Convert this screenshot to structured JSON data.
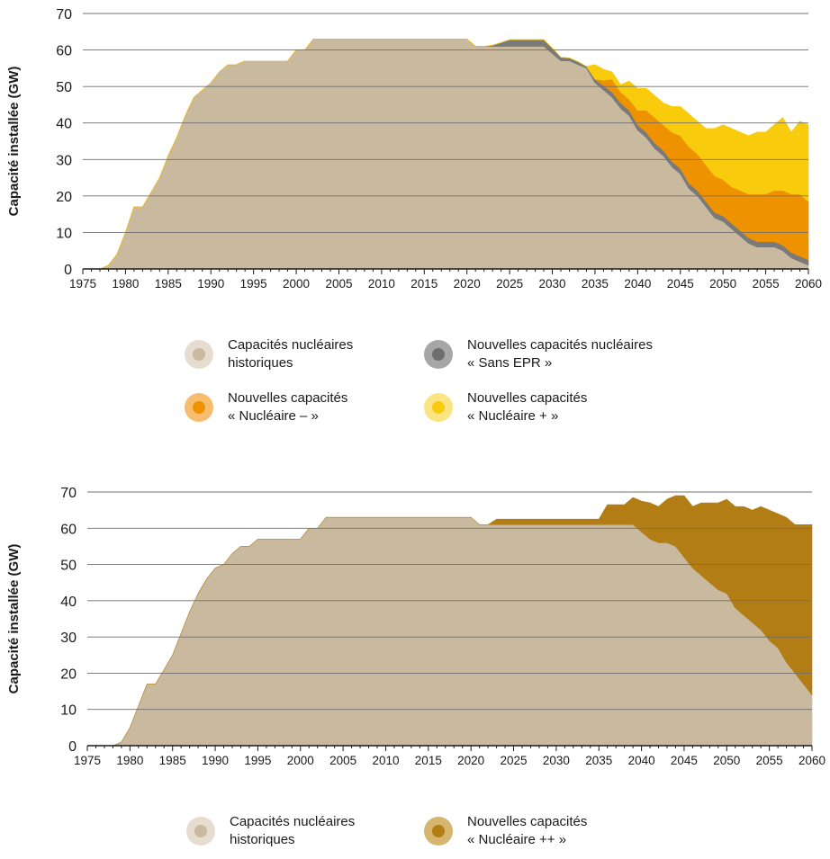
{
  "chart_data": [
    {
      "type": "area",
      "stacked": true,
      "ylabel": "Capacité installée (GW)",
      "ylim": [
        0,
        70
      ],
      "yticks": [
        0,
        10,
        20,
        30,
        40,
        50,
        60,
        70
      ],
      "xlim": [
        1975,
        2060
      ],
      "xticks": [
        1975,
        1980,
        1985,
        1990,
        1995,
        2000,
        2005,
        2010,
        2015,
        2020,
        2025,
        2030,
        2035,
        2040,
        2045,
        2050,
        2055,
        2060
      ],
      "grid": "horizontal",
      "x": [
        1977,
        1978,
        1979,
        1980,
        1981,
        1982,
        1983,
        1984,
        1985,
        1986,
        1987,
        1988,
        1989,
        1990,
        1991,
        1992,
        1993,
        1994,
        1995,
        1996,
        1997,
        1998,
        1999,
        2000,
        2001,
        2002,
        2003,
        2004,
        2005,
        2006,
        2007,
        2008,
        2009,
        2010,
        2011,
        2012,
        2013,
        2014,
        2015,
        2016,
        2017,
        2018,
        2019,
        2020,
        2021,
        2022,
        2023,
        2024,
        2025,
        2026,
        2027,
        2028,
        2029,
        2030,
        2031,
        2032,
        2033,
        2034,
        2035,
        2036,
        2037,
        2038,
        2039,
        2040,
        2041,
        2042,
        2043,
        2044,
        2045,
        2046,
        2047,
        2048,
        2049,
        2050,
        2051,
        2052,
        2053,
        2054,
        2055,
        2056,
        2057,
        2058,
        2059,
        2060
      ],
      "series": [
        {
          "name": "Capacités nucléaires historiques",
          "color": "#c9b99f",
          "values": [
            0,
            1,
            4,
            10,
            17,
            17,
            21,
            25,
            31,
            36,
            42,
            47,
            49,
            51,
            54,
            56,
            56,
            57,
            57,
            57,
            57,
            57,
            57,
            60,
            60,
            63,
            63,
            63,
            63,
            63,
            63,
            63,
            63,
            63,
            63,
            63,
            63,
            63,
            63,
            63,
            63,
            63,
            63,
            63,
            61,
            61,
            61,
            61,
            61,
            61,
            61,
            61,
            61,
            59,
            57,
            57,
            56,
            55,
            51,
            49,
            47,
            44,
            42,
            38,
            36,
            33,
            31,
            28,
            26,
            22,
            20,
            17,
            14,
            13,
            11,
            9,
            7,
            6,
            6,
            6,
            5,
            3,
            2,
            1
          ]
        },
        {
          "name": "Nouvelles capacités nucléaires « Sans EPR »",
          "color": "#7a7a7a",
          "values": [
            0,
            0,
            0,
            0,
            0,
            0,
            0,
            0,
            0,
            0,
            0,
            0,
            0,
            0,
            0,
            0,
            0,
            0,
            0,
            0,
            0,
            0,
            0,
            0,
            0,
            0,
            0,
            0,
            0,
            0,
            0,
            0,
            0,
            0,
            0,
            0,
            0,
            0,
            0,
            0,
            0,
            0,
            0,
            0,
            0,
            0,
            0.3,
            1,
            1.8,
            1.8,
            1.8,
            1.8,
            1.8,
            1.5,
            1,
            0.8,
            0.8,
            0.5,
            1,
            1.2,
            1.5,
            1.5,
            1.5,
            1.5,
            1.5,
            1.5,
            1.5,
            1.5,
            1.5,
            1.5,
            1.5,
            1.5,
            1.5,
            1.5,
            1.5,
            1.5,
            1.5,
            1.5,
            1.5,
            1.5,
            1.5,
            1.5,
            1.5,
            1.5
          ]
        },
        {
          "name": "Nouvelles capacités « Nucléaire – »",
          "color": "#ef9200",
          "values": [
            0,
            0,
            0,
            0,
            0,
            0,
            0,
            0,
            0,
            0,
            0,
            0,
            0,
            0,
            0,
            0,
            0,
            0,
            0,
            0,
            0,
            0,
            0,
            0,
            0,
            0,
            0,
            0,
            0,
            0,
            0,
            0,
            0,
            0,
            0,
            0,
            0,
            0,
            0,
            0,
            0,
            0,
            0,
            0,
            0,
            0,
            0,
            0,
            0,
            0,
            0,
            0,
            0,
            0,
            0,
            0,
            0,
            0,
            0,
            1.5,
            3.5,
            3,
            3,
            4,
            6,
            7,
            7,
            8,
            9,
            10,
            10,
            10,
            10,
            10,
            10,
            11,
            12,
            13,
            13,
            14,
            15,
            16,
            17,
            16
          ]
        },
        {
          "name": "Nouvelles capacités « Nucléaire + »",
          "color": "#f8cc0d",
          "values": [
            0,
            0,
            0,
            0,
            0,
            0,
            0,
            0,
            0,
            0,
            0,
            0,
            0,
            0,
            0,
            0,
            0,
            0,
            0,
            0,
            0,
            0,
            0,
            0,
            0,
            0,
            0,
            0,
            0,
            0,
            0,
            0,
            0,
            0,
            0,
            0,
            0,
            0,
            0,
            0,
            0,
            0,
            0,
            0,
            0,
            0,
            0,
            0,
            0,
            0,
            0,
            0,
            0,
            0,
            0,
            0,
            0,
            0,
            4,
            3,
            2,
            2,
            5,
            6,
            6,
            6,
            6,
            7,
            8,
            9,
            9,
            10,
            13,
            15,
            16,
            16,
            16,
            17,
            17,
            18,
            20,
            17,
            20,
            21
          ]
        }
      ]
    },
    {
      "type": "area",
      "stacked": true,
      "ylabel": "Capacité installée (GW)",
      "ylim": [
        0,
        70
      ],
      "yticks": [
        0,
        10,
        20,
        30,
        40,
        50,
        60,
        70
      ],
      "xlim": [
        1975,
        2060
      ],
      "xticks": [
        1975,
        1980,
        1985,
        1990,
        1995,
        2000,
        2005,
        2010,
        2015,
        2020,
        2025,
        2030,
        2035,
        2040,
        2045,
        2050,
        2055,
        2060
      ],
      "grid": "horizontal",
      "x": [
        1977,
        1978,
        1979,
        1980,
        1981,
        1982,
        1983,
        1984,
        1985,
        1986,
        1987,
        1988,
        1989,
        1990,
        1991,
        1992,
        1993,
        1994,
        1995,
        1996,
        1997,
        1998,
        1999,
        2000,
        2001,
        2002,
        2003,
        2004,
        2005,
        2006,
        2007,
        2008,
        2009,
        2010,
        2011,
        2012,
        2013,
        2014,
        2015,
        2016,
        2017,
        2018,
        2019,
        2020,
        2021,
        2022,
        2023,
        2024,
        2025,
        2026,
        2027,
        2028,
        2029,
        2030,
        2031,
        2032,
        2033,
        2034,
        2035,
        2036,
        2037,
        2038,
        2039,
        2040,
        2041,
        2042,
        2043,
        2044,
        2045,
        2046,
        2047,
        2048,
        2049,
        2050,
        2051,
        2052,
        2053,
        2054,
        2055,
        2056,
        2057,
        2058,
        2059,
        2060
      ],
      "series": [
        {
          "name": "Capacités nucléaires historiques",
          "color": "#c9b99f",
          "values": [
            0,
            0,
            1,
            5,
            11,
            17,
            17,
            21,
            25,
            31,
            37,
            42,
            46,
            49,
            50,
            53,
            55,
            55,
            57,
            57,
            57,
            57,
            57,
            57,
            60,
            60,
            63,
            63,
            63,
            63,
            63,
            63,
            63,
            63,
            63,
            63,
            63,
            63,
            63,
            63,
            63,
            63,
            63,
            63,
            61,
            61,
            61,
            61,
            61,
            61,
            61,
            61,
            61,
            61,
            61,
            61,
            61,
            61,
            61,
            61,
            61,
            61,
            61,
            59,
            57,
            56,
            56,
            55,
            52,
            49,
            47,
            45,
            43,
            42,
            38,
            36,
            34,
            32,
            29,
            27,
            23,
            20,
            17,
            14
          ]
        },
        {
          "name": "Nouvelles capacités « Nucléaire ++ »",
          "color": "#b27d15",
          "values": [
            0,
            0,
            0,
            0,
            0,
            0,
            0,
            0,
            0,
            0,
            0,
            0,
            0,
            0,
            0,
            0,
            0,
            0,
            0,
            0,
            0,
            0,
            0,
            0,
            0,
            0,
            0,
            0,
            0,
            0,
            0,
            0,
            0,
            0,
            0,
            0,
            0,
            0,
            0,
            0,
            0,
            0,
            0,
            0,
            0,
            0,
            1.5,
            1.5,
            1.5,
            1.5,
            1.5,
            1.5,
            1.5,
            1.5,
            1.5,
            1.5,
            1.5,
            1.5,
            1.5,
            5.5,
            5.5,
            5.5,
            7.5,
            8.5,
            10,
            10,
            12,
            14,
            17,
            17,
            20,
            22,
            24,
            26,
            28,
            30,
            31,
            34,
            36,
            37,
            40,
            41,
            44,
            47
          ]
        }
      ]
    }
  ],
  "legends": [
    [
      {
        "line1": "Capacités nucléaires",
        "line2": "historiques",
        "outer": "#e6ddd0",
        "inner": "#c9b99f"
      },
      {
        "line1": "Nouvelles capacités nucléaires",
        "line2": "« Sans EPR »",
        "outer": "#a6a6a6",
        "inner": "#6e6e6e"
      },
      {
        "line1": "Nouvelles capacités",
        "line2": "« Nucléaire – »",
        "outer": "#f6bd6f",
        "inner": "#ef9200"
      },
      {
        "line1": "Nouvelles capacités",
        "line2": "« Nucléaire + »",
        "outer": "#fde482",
        "inner": "#f8cc0d"
      }
    ],
    [
      {
        "line1": "Capacités nucléaires",
        "line2": "historiques",
        "outer": "#e6ddd0",
        "inner": "#c9b99f"
      },
      {
        "line1": "Nouvelles capacités",
        "line2": "« Nucléaire ++ »",
        "outer": "#d6b56f",
        "inner": "#b27d15"
      }
    ]
  ]
}
